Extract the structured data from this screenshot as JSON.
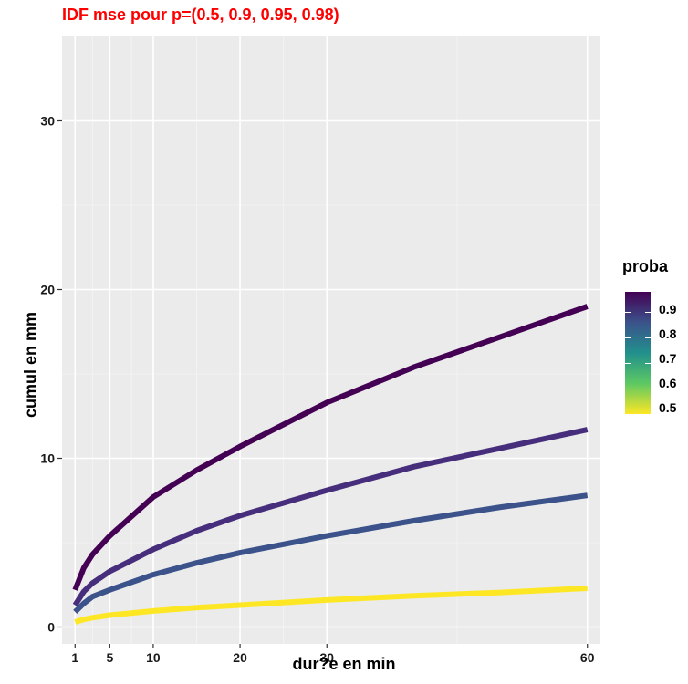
{
  "chart_data": {
    "type": "line",
    "title": "IDF mse  pour p=(0.5, 0.9, 0.95, 0.98)",
    "xlabel": "dur?e en min",
    "ylabel": "cumul en mm",
    "xlim": [
      -0.5,
      61.5
    ],
    "ylim": [
      -1,
      35
    ],
    "x_ticks": [
      1,
      5,
      10,
      20,
      30,
      60
    ],
    "y_ticks": [
      0,
      10,
      20,
      30
    ],
    "grid": true,
    "legend": {
      "title": "proba",
      "position": "right",
      "type": "colorbar",
      "labels": [
        "0.9",
        "0.8",
        "0.7",
        "0.6",
        "0.5"
      ],
      "range": [
        0.5,
        0.98
      ]
    },
    "series": [
      {
        "p": 0.98,
        "color": "#440154",
        "x": [
          1,
          2,
          3,
          5,
          10,
          15,
          20,
          30,
          40,
          50,
          60
        ],
        "y": [
          2.2,
          3.5,
          4.3,
          5.4,
          7.7,
          9.3,
          10.7,
          13.3,
          15.4,
          17.2,
          19.0
        ]
      },
      {
        "p": 0.95,
        "color": "#472e7c",
        "x": [
          1,
          2,
          3,
          5,
          10,
          15,
          20,
          30,
          40,
          50,
          60
        ],
        "y": [
          1.3,
          2.1,
          2.6,
          3.3,
          4.6,
          5.7,
          6.6,
          8.1,
          9.5,
          10.6,
          11.7
        ]
      },
      {
        "p": 0.9,
        "color": "#3b528b",
        "x": [
          1,
          2,
          3,
          5,
          10,
          15,
          20,
          30,
          40,
          50,
          60
        ],
        "y": [
          0.9,
          1.4,
          1.8,
          2.2,
          3.1,
          3.8,
          4.4,
          5.4,
          6.3,
          7.1,
          7.8
        ]
      },
      {
        "p": 0.5,
        "color": "#fde725",
        "x": [
          1,
          2,
          3,
          5,
          10,
          15,
          20,
          30,
          40,
          50,
          60
        ],
        "y": [
          0.3,
          0.45,
          0.55,
          0.7,
          0.95,
          1.15,
          1.3,
          1.6,
          1.85,
          2.05,
          2.3
        ]
      }
    ]
  }
}
